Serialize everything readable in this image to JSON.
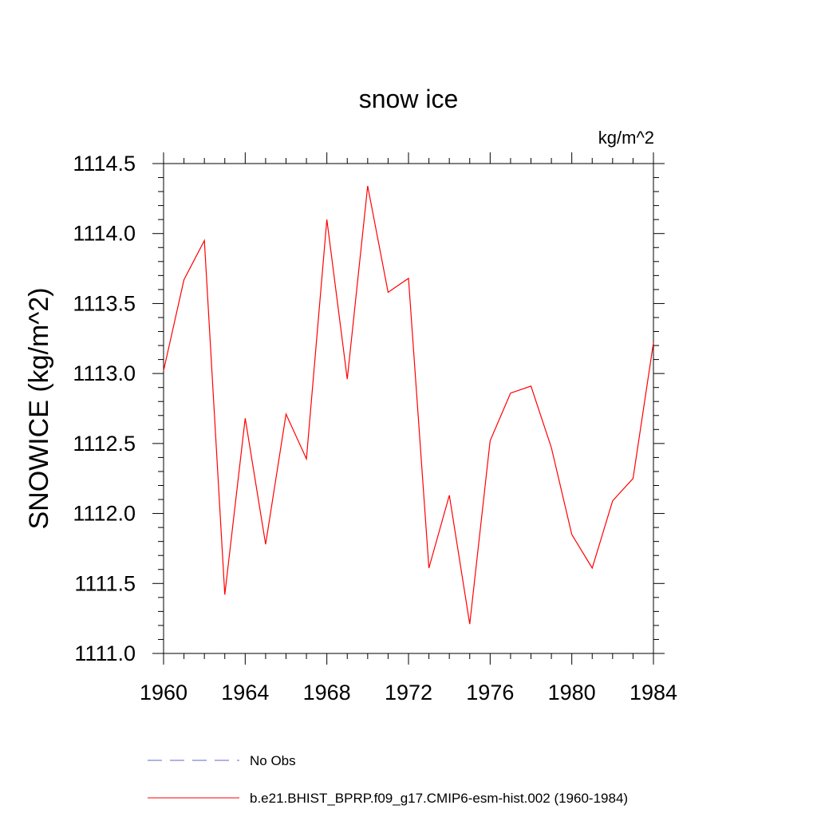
{
  "chart_data": {
    "type": "line",
    "title": "snow ice",
    "units_label": "kg/m^2",
    "ylabel": "SNOWICE  (kg/m^2)",
    "xlabel": "",
    "xlim": [
      1960,
      1984
    ],
    "ylim": [
      1111.0,
      1114.5
    ],
    "x_ticks": [
      1960,
      1964,
      1968,
      1972,
      1976,
      1980,
      1984
    ],
    "x_tick_labels": [
      "1960",
      "1964",
      "1968",
      "1972",
      "1976",
      "1980",
      "1984"
    ],
    "y_ticks": [
      1111.0,
      1111.5,
      1112.0,
      1112.5,
      1113.0,
      1113.5,
      1114.0,
      1114.5
    ],
    "y_tick_labels": [
      "1111.0",
      "1111.5",
      "1112.0",
      "1112.5",
      "1113.0",
      "1113.5",
      "1114.0",
      "1114.5"
    ],
    "grid": false,
    "legend_position": "bottom",
    "series": [
      {
        "name": "No Obs",
        "color": "#6666cc",
        "style": "dashed",
        "x": [],
        "y": []
      },
      {
        "name": "b.e21.BHIST_BPRP.f09_g17.CMIP6-esm-hist.002 (1960-1984)",
        "color": "#ff0000",
        "style": "solid",
        "x": [
          1960,
          1961,
          1962,
          1963,
          1964,
          1965,
          1966,
          1967,
          1968,
          1969,
          1970,
          1971,
          1972,
          1973,
          1974,
          1975,
          1976,
          1977,
          1978,
          1979,
          1980,
          1981,
          1982,
          1983,
          1984
        ],
        "y": [
          1113.02,
          1113.67,
          1113.95,
          1111.42,
          1112.68,
          1111.78,
          1112.71,
          1112.39,
          1114.1,
          1112.96,
          1114.34,
          1113.58,
          1113.68,
          1111.61,
          1112.13,
          1111.21,
          1112.52,
          1112.86,
          1112.91,
          1112.47,
          1111.85,
          1111.61,
          1112.09,
          1112.25,
          1113.22
        ]
      }
    ]
  }
}
